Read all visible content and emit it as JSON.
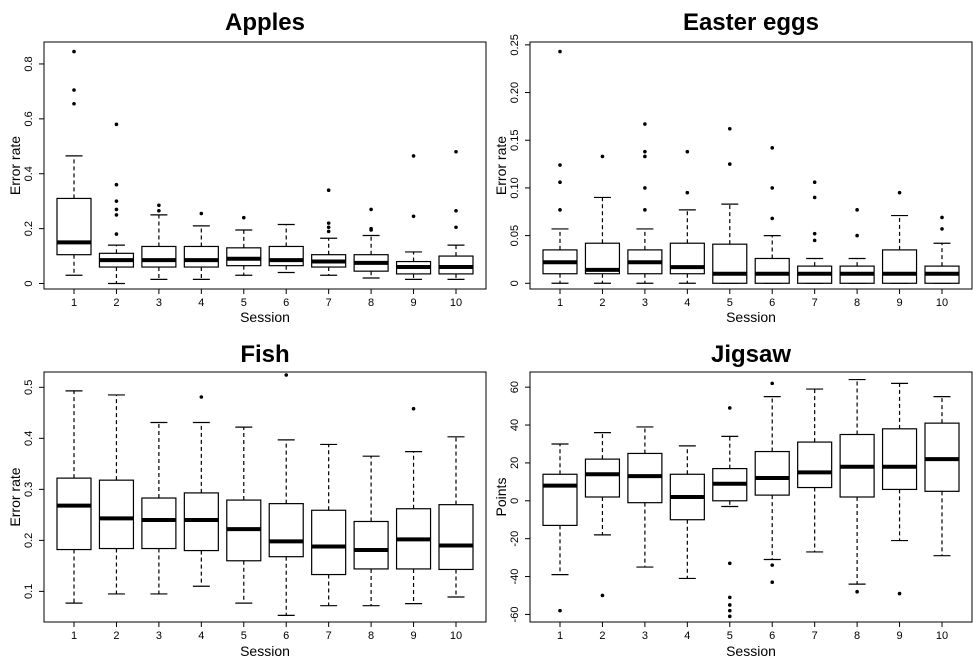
{
  "chart_data": [
    {
      "type": "boxplot",
      "title": "Apples",
      "xlabel": "Session",
      "ylabel": "Error rate",
      "categories": [
        "1",
        "2",
        "3",
        "4",
        "5",
        "6",
        "7",
        "8",
        "9",
        "10"
      ],
      "ylim": [
        -0.02,
        0.88
      ],
      "yticks": [
        0,
        0.2,
        0.4,
        0.6,
        0.8
      ],
      "ytick_labels": [
        "0",
        "0.2",
        "0.4",
        "0.6",
        "0.8"
      ],
      "boxes": [
        {
          "whislo": 0.03,
          "q1": 0.105,
          "med": 0.15,
          "q3": 0.31,
          "whishi": 0.465,
          "fliers": [
            0.655,
            0.705,
            0.845
          ]
        },
        {
          "whislo": 0.0,
          "q1": 0.06,
          "med": 0.085,
          "q3": 0.11,
          "whishi": 0.14,
          "fliers": [
            0.18,
            0.25,
            0.27,
            0.3,
            0.36,
            0.58
          ]
        },
        {
          "whislo": 0.015,
          "q1": 0.06,
          "med": 0.085,
          "q3": 0.135,
          "whishi": 0.25,
          "fliers": [
            0.265,
            0.285
          ]
        },
        {
          "whislo": 0.015,
          "q1": 0.06,
          "med": 0.085,
          "q3": 0.135,
          "whishi": 0.21,
          "fliers": [
            0.255
          ]
        },
        {
          "whislo": 0.03,
          "q1": 0.065,
          "med": 0.09,
          "q3": 0.13,
          "whishi": 0.195,
          "fliers": [
            0.24
          ]
        },
        {
          "whislo": 0.04,
          "q1": 0.065,
          "med": 0.085,
          "q3": 0.135,
          "whishi": 0.215,
          "fliers": []
        },
        {
          "whislo": 0.03,
          "q1": 0.06,
          "med": 0.08,
          "q3": 0.105,
          "whishi": 0.165,
          "fliers": [
            0.19,
            0.205,
            0.22,
            0.34
          ]
        },
        {
          "whislo": 0.02,
          "q1": 0.045,
          "med": 0.075,
          "q3": 0.105,
          "whishi": 0.175,
          "fliers": [
            0.195,
            0.2,
            0.27
          ]
        },
        {
          "whislo": 0.015,
          "q1": 0.035,
          "med": 0.06,
          "q3": 0.08,
          "whishi": 0.115,
          "fliers": [
            0.245,
            0.465
          ]
        },
        {
          "whislo": 0.015,
          "q1": 0.035,
          "med": 0.06,
          "q3": 0.1,
          "whishi": 0.14,
          "fliers": [
            0.205,
            0.265,
            0.48
          ]
        }
      ]
    },
    {
      "type": "boxplot",
      "title": "Easter eggs",
      "xlabel": "Session",
      "ylabel": "Error rate",
      "categories": [
        "1",
        "2",
        "3",
        "4",
        "5",
        "6",
        "7",
        "8",
        "9",
        "10"
      ],
      "ylim": [
        -0.006,
        0.253
      ],
      "yticks": [
        0,
        0.05,
        0.1,
        0.15,
        0.2,
        0.25
      ],
      "ytick_labels": [
        "0",
        "0.05",
        "0.10",
        "0.15",
        "0.20",
        "0.25"
      ],
      "boxes": [
        {
          "whislo": 0.0,
          "q1": 0.01,
          "med": 0.022,
          "q3": 0.035,
          "whishi": 0.057,
          "fliers": [
            0.077,
            0.106,
            0.124,
            0.243
          ]
        },
        {
          "whislo": 0.0,
          "q1": 0.01,
          "med": 0.014,
          "q3": 0.042,
          "whishi": 0.09,
          "fliers": [
            0.133
          ]
        },
        {
          "whislo": 0.0,
          "q1": 0.01,
          "med": 0.022,
          "q3": 0.035,
          "whishi": 0.057,
          "fliers": [
            0.077,
            0.1,
            0.133,
            0.138,
            0.167
          ]
        },
        {
          "whislo": 0.0,
          "q1": 0.01,
          "med": 0.017,
          "q3": 0.042,
          "whishi": 0.077,
          "fliers": [
            0.095,
            0.138
          ]
        },
        {
          "whislo": 0.0,
          "q1": 0.0,
          "med": 0.01,
          "q3": 0.041,
          "whishi": 0.083,
          "fliers": [
            0.125,
            0.162
          ]
        },
        {
          "whislo": 0.0,
          "q1": 0.0,
          "med": 0.01,
          "q3": 0.026,
          "whishi": 0.05,
          "fliers": [
            0.068,
            0.1,
            0.142
          ]
        },
        {
          "whislo": 0.0,
          "q1": 0.0,
          "med": 0.01,
          "q3": 0.018,
          "whishi": 0.026,
          "fliers": [
            0.045,
            0.052,
            0.09,
            0.106
          ]
        },
        {
          "whislo": 0.0,
          "q1": 0.0,
          "med": 0.01,
          "q3": 0.018,
          "whishi": 0.026,
          "fliers": [
            0.05,
            0.077
          ]
        },
        {
          "whislo": 0.0,
          "q1": 0.0,
          "med": 0.01,
          "q3": 0.035,
          "whishi": 0.071,
          "fliers": [
            0.095
          ]
        },
        {
          "whislo": 0.0,
          "q1": 0.0,
          "med": 0.01,
          "q3": 0.018,
          "whishi": 0.042,
          "fliers": [
            0.057,
            0.069
          ]
        }
      ]
    },
    {
      "type": "boxplot",
      "title": "Fish",
      "xlabel": "Session",
      "ylabel": "Error rate",
      "categories": [
        "1",
        "2",
        "3",
        "4",
        "5",
        "6",
        "7",
        "8",
        "9",
        "10"
      ],
      "ylim": [
        0.04,
        0.53
      ],
      "yticks": [
        0.1,
        0.2,
        0.3,
        0.4,
        0.5
      ],
      "ytick_labels": [
        "0.1",
        "0.2",
        "0.3",
        "0.4",
        "0.5"
      ],
      "boxes": [
        {
          "whislo": 0.077,
          "q1": 0.182,
          "med": 0.268,
          "q3": 0.322,
          "whishi": 0.493,
          "fliers": []
        },
        {
          "whislo": 0.095,
          "q1": 0.184,
          "med": 0.243,
          "q3": 0.318,
          "whishi": 0.485,
          "fliers": []
        },
        {
          "whislo": 0.095,
          "q1": 0.184,
          "med": 0.24,
          "q3": 0.283,
          "whishi": 0.431,
          "fliers": []
        },
        {
          "whislo": 0.11,
          "q1": 0.18,
          "med": 0.24,
          "q3": 0.293,
          "whishi": 0.431,
          "fliers": [
            0.481
          ]
        },
        {
          "whislo": 0.077,
          "q1": 0.16,
          "med": 0.222,
          "q3": 0.279,
          "whishi": 0.422,
          "fliers": []
        },
        {
          "whislo": 0.053,
          "q1": 0.168,
          "med": 0.198,
          "q3": 0.272,
          "whishi": 0.397,
          "fliers": [
            0.524
          ]
        },
        {
          "whislo": 0.072,
          "q1": 0.133,
          "med": 0.188,
          "q3": 0.259,
          "whishi": 0.388,
          "fliers": []
        },
        {
          "whislo": 0.072,
          "q1": 0.144,
          "med": 0.181,
          "q3": 0.237,
          "whishi": 0.365,
          "fliers": []
        },
        {
          "whislo": 0.076,
          "q1": 0.144,
          "med": 0.202,
          "q3": 0.262,
          "whishi": 0.374,
          "fliers": [
            0.458
          ]
        },
        {
          "whislo": 0.089,
          "q1": 0.143,
          "med": 0.19,
          "q3": 0.27,
          "whishi": 0.403,
          "fliers": []
        }
      ]
    },
    {
      "type": "boxplot",
      "title": "Jigsaw",
      "xlabel": "Session",
      "ylabel": "Points",
      "categories": [
        "1",
        "2",
        "3",
        "4",
        "5",
        "6",
        "7",
        "8",
        "9",
        "10"
      ],
      "ylim": [
        -64,
        68
      ],
      "yticks": [
        -60,
        -40,
        -20,
        0,
        20,
        40,
        60
      ],
      "ytick_labels": [
        "-60",
        "-40",
        "-20",
        "0",
        "20",
        "40",
        "60"
      ],
      "boxes": [
        {
          "whislo": -39,
          "q1": -13,
          "med": 8,
          "q3": 14,
          "whishi": 30,
          "fliers": [
            -58
          ]
        },
        {
          "whislo": -18,
          "q1": 2,
          "med": 14,
          "q3": 22,
          "whishi": 36,
          "fliers": [
            -50
          ]
        },
        {
          "whislo": -35,
          "q1": -1,
          "med": 13,
          "q3": 25,
          "whishi": 39,
          "fliers": []
        },
        {
          "whislo": -41,
          "q1": -10,
          "med": 2,
          "q3": 14,
          "whishi": 29,
          "fliers": []
        },
        {
          "whislo": -3,
          "q1": 0,
          "med": 9,
          "q3": 17,
          "whishi": 34,
          "fliers": [
            -33,
            -51,
            -55,
            -58,
            -61,
            49
          ]
        },
        {
          "whislo": -31,
          "q1": 3,
          "med": 12,
          "q3": 26,
          "whishi": 55,
          "fliers": [
            -34,
            -43,
            62
          ]
        },
        {
          "whislo": -27,
          "q1": 7,
          "med": 15,
          "q3": 31,
          "whishi": 59,
          "fliers": []
        },
        {
          "whislo": -44,
          "q1": 2,
          "med": 18,
          "q3": 35,
          "whishi": 64,
          "fliers": [
            -48
          ]
        },
        {
          "whislo": -21,
          "q1": 6,
          "med": 18,
          "q3": 38,
          "whishi": 62,
          "fliers": [
            -49
          ]
        },
        {
          "whislo": -29,
          "q1": 5,
          "med": 22,
          "q3": 41,
          "whishi": 55,
          "fliers": []
        }
      ]
    }
  ]
}
